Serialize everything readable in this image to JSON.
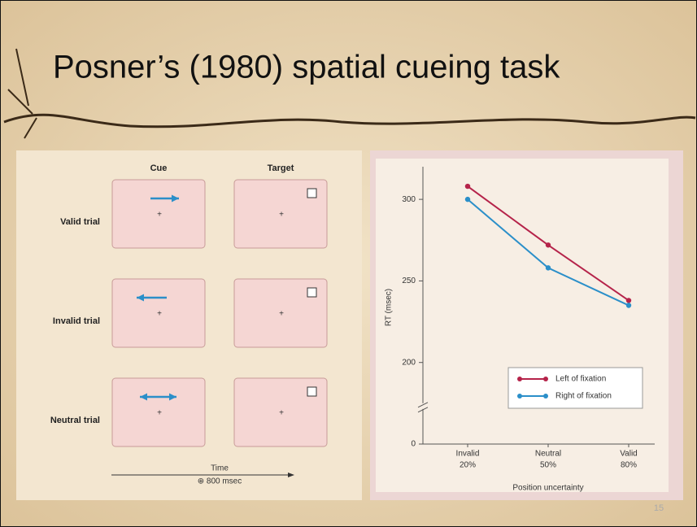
{
  "title": "Posner’s (1980) spatial cueing task",
  "page_number": "15",
  "diagram": {
    "columns": [
      "Cue",
      "Target"
    ],
    "rows": [
      "Valid trial",
      "Invalid trial",
      "Neutral trial"
    ],
    "fixation": "+",
    "time_label": "Time",
    "time_sub": "⊕ 800 msec"
  },
  "chart_data": {
    "type": "line",
    "categories": [
      [
        "Invalid",
        "20%"
      ],
      [
        "Neutral",
        "50%"
      ],
      [
        "Valid",
        "80%"
      ]
    ],
    "series": [
      {
        "name": "Left of fixation",
        "color": "#b5234a",
        "values": [
          308,
          272,
          238
        ]
      },
      {
        "name": "Right of fixation",
        "color": "#2b8fc9",
        "values": [
          300,
          258,
          235
        ]
      }
    ],
    "xlabel": "Position uncertainty",
    "ylabel": "RT (msec)",
    "ylim": [
      0,
      320
    ],
    "yticks": [
      0,
      200,
      250,
      300
    ],
    "axis_break": [
      0,
      200
    ],
    "legend": "lower right"
  }
}
